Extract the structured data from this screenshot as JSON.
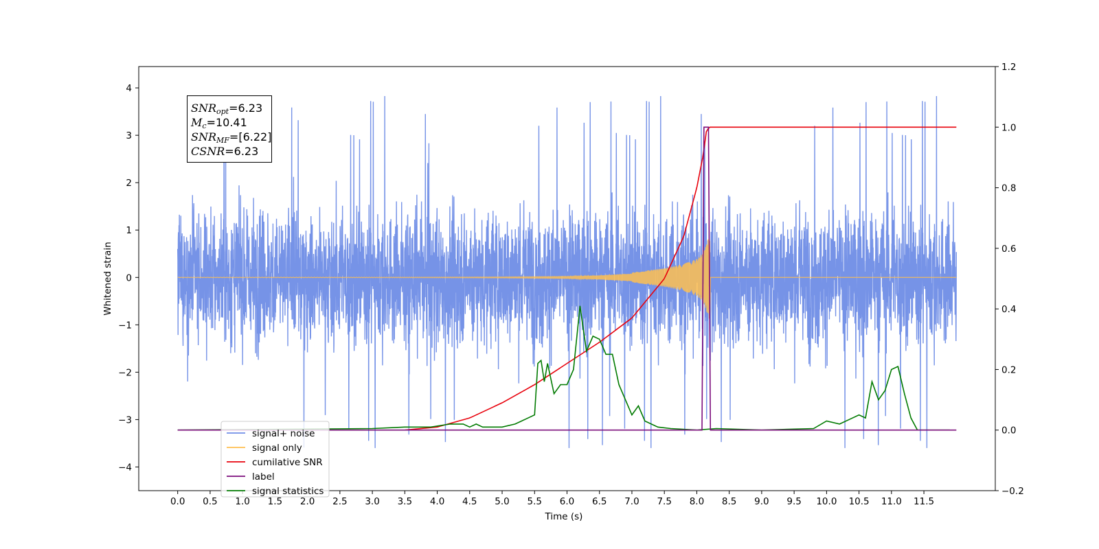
{
  "chart_data": {
    "type": "line",
    "title": "",
    "xlabel": "Time (s)",
    "ylabel": "Whitened strain",
    "ylabel_right": "",
    "xlim": [
      -0.6,
      12.6
    ],
    "ylim": [
      -4.5,
      4.45
    ],
    "ylim_right": [
      -0.2,
      1.2
    ],
    "grid": false,
    "legend_position": "bottom-left",
    "x_ticks": [
      0.0,
      0.5,
      1.0,
      1.5,
      2.0,
      2.5,
      3.0,
      3.5,
      4.0,
      4.5,
      5.0,
      5.5,
      6.0,
      6.5,
      7.0,
      7.5,
      8.0,
      8.5,
      9.0,
      9.5,
      10.0,
      10.5,
      11.0,
      11.5
    ],
    "x_tick_labels": [
      "0.0",
      "0.5",
      "1.0",
      "1.5",
      "2.0",
      "2.5",
      "3.0",
      "3.5",
      "4.0",
      "4.5",
      "5.0",
      "5.5",
      "6.0",
      "6.5",
      "7.0",
      "7.5",
      "8.0",
      "8.5",
      "9.0",
      "9.5",
      "10.0",
      "10.5",
      "11.0",
      "11.5"
    ],
    "y_ticks_left": [
      -4,
      -3,
      -2,
      -1,
      0,
      1,
      2,
      3,
      4
    ],
    "y_tick_labels_left": [
      "−4",
      "−3",
      "−2",
      "−1",
      "0",
      "1",
      "2",
      "3",
      "4"
    ],
    "y_ticks_right": [
      -0.2,
      0.0,
      0.2,
      0.4,
      0.6,
      0.8,
      1.0,
      1.2
    ],
    "y_tick_labels_right": [
      "−0.2",
      "0.0",
      "0.2",
      "0.4",
      "0.6",
      "0.8",
      "1.0",
      "1.2"
    ],
    "annotation": {
      "snr_opt": "=6.23",
      "mc": "=10.41",
      "snr_mf": "=[6.22]",
      "csnr": "=6.23"
    },
    "series": [
      {
        "name": "signal+ noise",
        "color": "#6f8de6",
        "axis": "left",
        "x_range": [
          0,
          12
        ],
        "y_range": [
          -3.6,
          4.05
        ],
        "description_values": "noise band roughly between -2.5 and 2.5 with spikes up to 4.0 and down to -3.6"
      },
      {
        "name": "signal only",
        "color": "#ffbf50",
        "axis": "left",
        "x": [
          0,
          3,
          4,
          5,
          6,
          6.5,
          7,
          7.5,
          7.8,
          8.0,
          8.1,
          8.2,
          8.21,
          12
        ],
        "amplitude": [
          0.003,
          0.005,
          0.008,
          0.012,
          0.02,
          0.04,
          0.08,
          0.15,
          0.22,
          0.3,
          0.4,
          0.7,
          0.0,
          0.0
        ]
      },
      {
        "name": "cumilative SNR",
        "color": "#e8000b",
        "axis": "right",
        "x": [
          3.5,
          4.0,
          4.5,
          5.0,
          5.5,
          6.0,
          6.5,
          7.0,
          7.5,
          7.8,
          8.0,
          8.1,
          8.15,
          8.2,
          12.0
        ],
        "values": [
          0.0,
          0.01,
          0.04,
          0.09,
          0.15,
          0.22,
          0.29,
          0.37,
          0.5,
          0.64,
          0.8,
          0.91,
          0.99,
          1.0,
          1.0
        ]
      },
      {
        "name": "label",
        "color": "#7b0c7b",
        "axis": "right",
        "x": [
          0.0,
          8.08,
          8.11,
          8.18,
          8.21,
          12.0
        ],
        "values": [
          0.0,
          0.0,
          1.0,
          1.0,
          0.0,
          0.0
        ]
      },
      {
        "name": "signal statistics",
        "color": "#007a00",
        "axis": "right",
        "x": [
          0.0,
          3.0,
          3.5,
          3.9,
          4.2,
          4.4,
          4.5,
          4.6,
          4.7,
          4.8,
          5.0,
          5.2,
          5.3,
          5.4,
          5.5,
          5.55,
          5.6,
          5.65,
          5.7,
          5.8,
          5.9,
          6.0,
          6.1,
          6.2,
          6.3,
          6.4,
          6.5,
          6.6,
          6.7,
          6.8,
          6.9,
          7.0,
          7.1,
          7.2,
          7.4,
          7.6,
          8.0,
          8.3,
          9.0,
          9.8,
          10.0,
          10.2,
          10.4,
          10.5,
          10.6,
          10.7,
          10.8,
          10.9,
          11.0,
          11.1,
          11.2,
          11.3,
          11.4,
          11.9
        ],
        "values": [
          0.0,
          0.005,
          0.01,
          0.01,
          0.02,
          0.02,
          0.01,
          0.02,
          0.01,
          0.01,
          0.01,
          0.02,
          0.03,
          0.04,
          0.05,
          0.22,
          0.23,
          0.16,
          0.22,
          0.12,
          0.15,
          0.15,
          0.2,
          0.41,
          0.26,
          0.31,
          0.3,
          0.25,
          0.25,
          0.15,
          0.1,
          0.05,
          0.08,
          0.03,
          0.01,
          0.005,
          0.0,
          0.005,
          0.0,
          0.005,
          0.03,
          0.02,
          0.04,
          0.05,
          0.04,
          0.16,
          0.1,
          0.13,
          0.2,
          0.21,
          0.12,
          0.04,
          0.0,
          0.0
        ]
      }
    ]
  },
  "legend": {
    "items": [
      {
        "label": "signal+ noise",
        "color": "#6f8de6"
      },
      {
        "label": "signal only",
        "color": "#ffbf50"
      },
      {
        "label": "cumilative SNR",
        "color": "#e8000b"
      },
      {
        "label": "label",
        "color": "#7b0c7b"
      },
      {
        "label": "signal statistics",
        "color": "#007a00"
      }
    ]
  }
}
